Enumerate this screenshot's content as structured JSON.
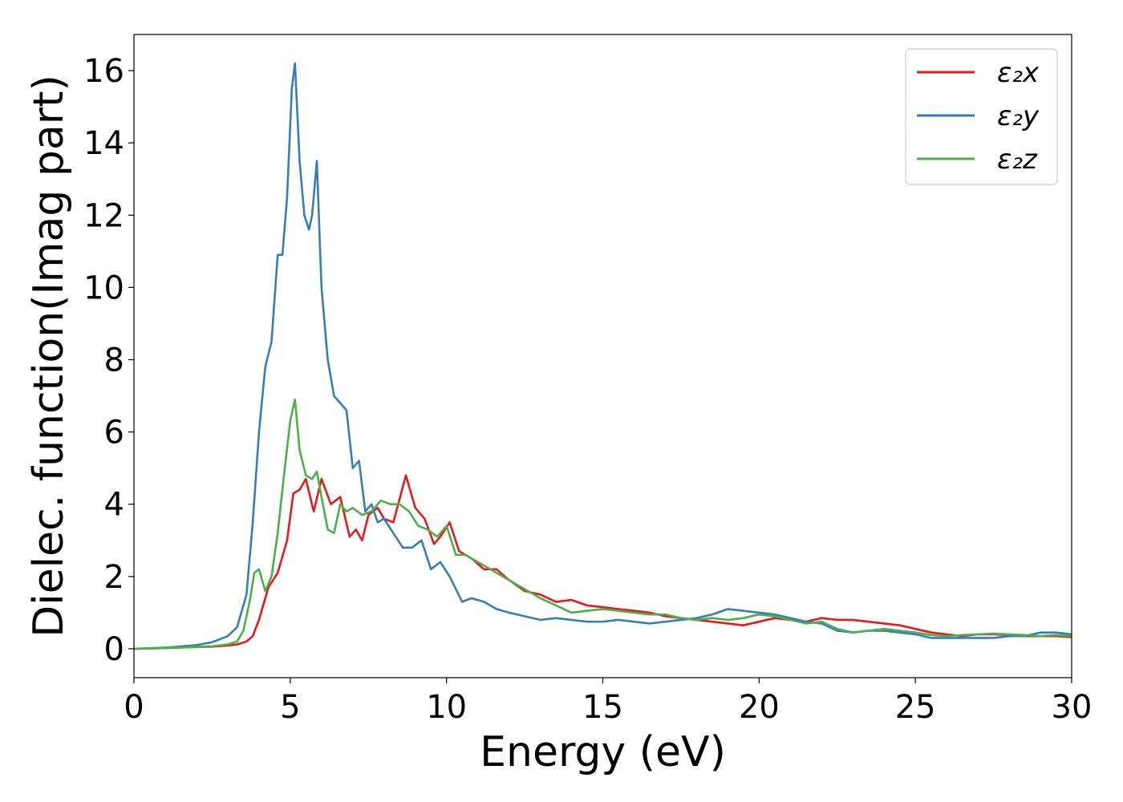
{
  "chart_data": {
    "type": "line",
    "xlabel": "Energy (eV)",
    "ylabel": "Dielec. function(Imag part)",
    "xlim": [
      0,
      30
    ],
    "ylim": [
      -0.8,
      17.0
    ],
    "xticks": [
      0,
      5,
      10,
      15,
      20,
      25,
      30
    ],
    "yticks": [
      0,
      2,
      4,
      6,
      8,
      10,
      12,
      14,
      16
    ],
    "grid": false,
    "legend_position": "top-right",
    "series": [
      {
        "name": "ε₂x",
        "color": "#e41a1c",
        "x": [
          0,
          1,
          2,
          2.5,
          3.0,
          3.3,
          3.6,
          3.8,
          4.0,
          4.3,
          4.6,
          4.9,
          5.1,
          5.3,
          5.5,
          5.75,
          6.0,
          6.3,
          6.6,
          6.9,
          7.1,
          7.3,
          7.5,
          7.8,
          8.0,
          8.3,
          8.7,
          9.0,
          9.3,
          9.6,
          9.8,
          10.1,
          10.4,
          10.8,
          11.2,
          11.6,
          12.0,
          12.5,
          13.0,
          13.5,
          14.0,
          14.5,
          15.0,
          15.5,
          16.0,
          16.5,
          17.0,
          17.5,
          18.0,
          18.5,
          19.0,
          19.5,
          20.0,
          20.5,
          21.0,
          21.5,
          22.0,
          22.5,
          23.0,
          23.5,
          24.0,
          24.5,
          25.0,
          25.5,
          26.0,
          26.5,
          27.0,
          27.5,
          28.0,
          28.5,
          29.0,
          29.5,
          30.0
        ],
        "y": [
          0.0,
          0.02,
          0.05,
          0.06,
          0.09,
          0.12,
          0.2,
          0.35,
          0.8,
          1.7,
          2.1,
          3.0,
          4.3,
          4.4,
          4.7,
          3.8,
          4.7,
          4.0,
          4.2,
          3.1,
          3.3,
          3.0,
          3.7,
          3.9,
          3.6,
          3.5,
          4.8,
          3.9,
          3.6,
          2.9,
          3.1,
          3.5,
          2.7,
          2.5,
          2.2,
          2.2,
          1.9,
          1.6,
          1.5,
          1.3,
          1.35,
          1.2,
          1.15,
          1.1,
          1.05,
          1.0,
          0.9,
          0.85,
          0.8,
          0.75,
          0.7,
          0.65,
          0.75,
          0.85,
          0.8,
          0.75,
          0.85,
          0.8,
          0.8,
          0.75,
          0.7,
          0.65,
          0.55,
          0.45,
          0.4,
          0.35,
          0.4,
          0.4,
          0.38,
          0.35,
          0.35,
          0.35,
          0.32
        ]
      },
      {
        "name": "ε₂y",
        "color": "#377eb8",
        "x": [
          0,
          1,
          2,
          2.5,
          3.0,
          3.3,
          3.6,
          3.8,
          4.0,
          4.2,
          4.4,
          4.6,
          4.75,
          4.9,
          5.05,
          5.15,
          5.3,
          5.45,
          5.6,
          5.7,
          5.85,
          6.0,
          6.2,
          6.4,
          6.6,
          6.8,
          7.0,
          7.2,
          7.4,
          7.6,
          7.8,
          8.0,
          8.3,
          8.6,
          8.9,
          9.2,
          9.5,
          9.8,
          10.1,
          10.5,
          10.8,
          11.2,
          11.6,
          12.0,
          12.5,
          13.0,
          13.5,
          14.0,
          14.5,
          15.0,
          15.5,
          16.0,
          16.5,
          17.0,
          17.5,
          18.0,
          18.5,
          19.0,
          19.5,
          20.0,
          20.5,
          21.0,
          21.5,
          22.0,
          22.5,
          23.0,
          23.5,
          24.0,
          24.5,
          25.0,
          25.5,
          26.0,
          26.5,
          27.0,
          27.5,
          28.0,
          28.5,
          29.0,
          29.5,
          30.0
        ],
        "y": [
          0.0,
          0.03,
          0.1,
          0.18,
          0.35,
          0.6,
          1.5,
          3.5,
          6.0,
          7.8,
          8.5,
          10.9,
          10.9,
          12.5,
          15.5,
          16.2,
          13.5,
          12.0,
          11.6,
          12.0,
          13.5,
          10.0,
          8.0,
          7.0,
          6.8,
          6.6,
          5.0,
          5.2,
          3.8,
          4.0,
          3.5,
          3.6,
          3.2,
          2.8,
          2.8,
          3.0,
          2.2,
          2.4,
          2.0,
          1.3,
          1.4,
          1.3,
          1.1,
          1.0,
          0.9,
          0.8,
          0.85,
          0.8,
          0.75,
          0.75,
          0.8,
          0.75,
          0.7,
          0.75,
          0.8,
          0.85,
          0.95,
          1.1,
          1.05,
          1.0,
          0.95,
          0.85,
          0.75,
          0.7,
          0.5,
          0.45,
          0.5,
          0.5,
          0.45,
          0.4,
          0.3,
          0.3,
          0.3,
          0.3,
          0.3,
          0.35,
          0.35,
          0.45,
          0.45,
          0.4
        ]
      },
      {
        "name": "ε₂z",
        "color": "#4daf4a",
        "x": [
          0,
          1,
          2,
          2.5,
          3.0,
          3.3,
          3.5,
          3.7,
          3.85,
          4.0,
          4.2,
          4.4,
          4.6,
          4.8,
          5.0,
          5.15,
          5.3,
          5.5,
          5.7,
          5.85,
          6.0,
          6.2,
          6.4,
          6.6,
          6.8,
          7.0,
          7.3,
          7.6,
          7.9,
          8.2,
          8.5,
          8.8,
          9.1,
          9.4,
          9.7,
          10.0,
          10.3,
          10.6,
          11.0,
          11.4,
          11.8,
          12.2,
          12.6,
          13.0,
          13.5,
          14.0,
          14.5,
          15.0,
          15.5,
          16.0,
          16.5,
          17.0,
          17.5,
          18.0,
          18.5,
          19.0,
          19.5,
          20.0,
          20.5,
          21.0,
          21.5,
          22.0,
          22.5,
          23.0,
          23.5,
          24.0,
          24.5,
          25.0,
          25.5,
          26.0,
          26.5,
          27.0,
          27.5,
          28.0,
          28.5,
          29.0,
          29.5,
          30.0
        ],
        "y": [
          0.0,
          0.02,
          0.05,
          0.07,
          0.12,
          0.2,
          0.5,
          1.3,
          2.1,
          2.2,
          1.6,
          2.0,
          3.2,
          4.8,
          6.3,
          6.9,
          5.5,
          4.8,
          4.7,
          4.9,
          4.2,
          3.3,
          3.2,
          4.0,
          3.8,
          3.9,
          3.7,
          3.8,
          4.1,
          4.0,
          4.0,
          3.8,
          3.4,
          3.3,
          3.1,
          3.4,
          2.6,
          2.6,
          2.4,
          2.2,
          2.0,
          1.8,
          1.6,
          1.4,
          1.2,
          1.0,
          1.05,
          1.1,
          1.05,
          1.0,
          0.95,
          0.95,
          0.85,
          0.8,
          0.85,
          0.8,
          0.85,
          0.95,
          0.9,
          0.8,
          0.7,
          0.75,
          0.55,
          0.45,
          0.5,
          0.55,
          0.5,
          0.45,
          0.38,
          0.35,
          0.38,
          0.4,
          0.42,
          0.4,
          0.38,
          0.35,
          0.38,
          0.35
        ]
      }
    ]
  }
}
